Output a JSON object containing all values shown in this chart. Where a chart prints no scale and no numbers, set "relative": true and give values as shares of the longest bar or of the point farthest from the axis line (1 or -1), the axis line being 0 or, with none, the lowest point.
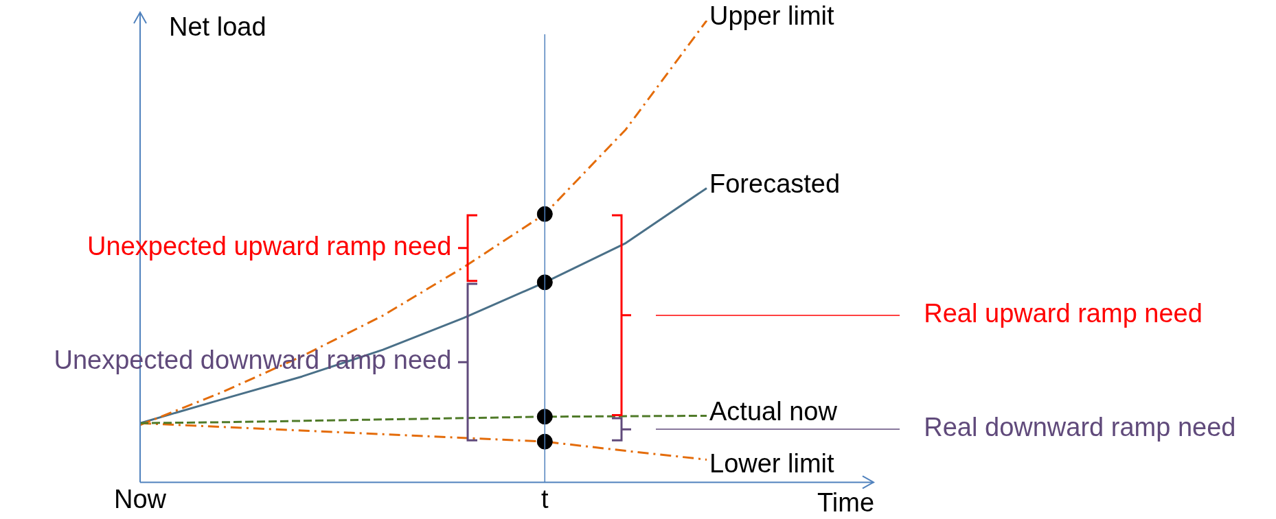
{
  "chart_data": {
    "type": "line",
    "relative": true,
    "xlabel": "Time",
    "ylabel": "Net load",
    "legend": false,
    "grid": false,
    "marker": "none",
    "categories": [
      "Now",
      null,
      null,
      null,
      null,
      "t",
      null,
      null
    ],
    "series": [
      {
        "name": "Upper limit",
        "color": "#e46c0a",
        "line_style": "dashdot",
        "values": [
          0.124,
          0.194,
          0.273,
          0.361,
          0.466,
          0.581,
          0.764,
          1
        ]
      },
      {
        "name": "Forecasted",
        "color": "#4a7088",
        "line_style": "solid",
        "values": [
          0.128,
          0.179,
          0.229,
          0.287,
          0.356,
          0.433,
          0.518,
          0.637
        ]
      },
      {
        "name": "Actual now",
        "color": "#4f7a28",
        "line_style": "dashed",
        "values": [
          0.128,
          0.13,
          0.133,
          0.136,
          0.139,
          0.142,
          0.143,
          0.144
        ]
      },
      {
        "name": "Lower limit",
        "color": "#e46c0a",
        "line_style": "dashdot",
        "values": [
          0.128,
          0.12,
          0.112,
          0.104,
          0.096,
          0.088,
          0.068,
          0.049
        ]
      },
      {
        "type": "scatter",
        "color": "#000000",
        "marker": "circle",
        "x": [
          "t",
          "t",
          "t",
          "t"
        ],
        "values": [
          0.581,
          0.433,
          0.142,
          0.088
        ]
      }
    ],
    "ref_lines": [
      {
        "axis": "x",
        "value": "t",
        "color": "#4f81bd"
      }
    ],
    "annotations": [
      "Unexpected upward ramp need",
      "Unexpected downward ramp need",
      "Real upward ramp need",
      "Real downward ramp need"
    ]
  }
}
